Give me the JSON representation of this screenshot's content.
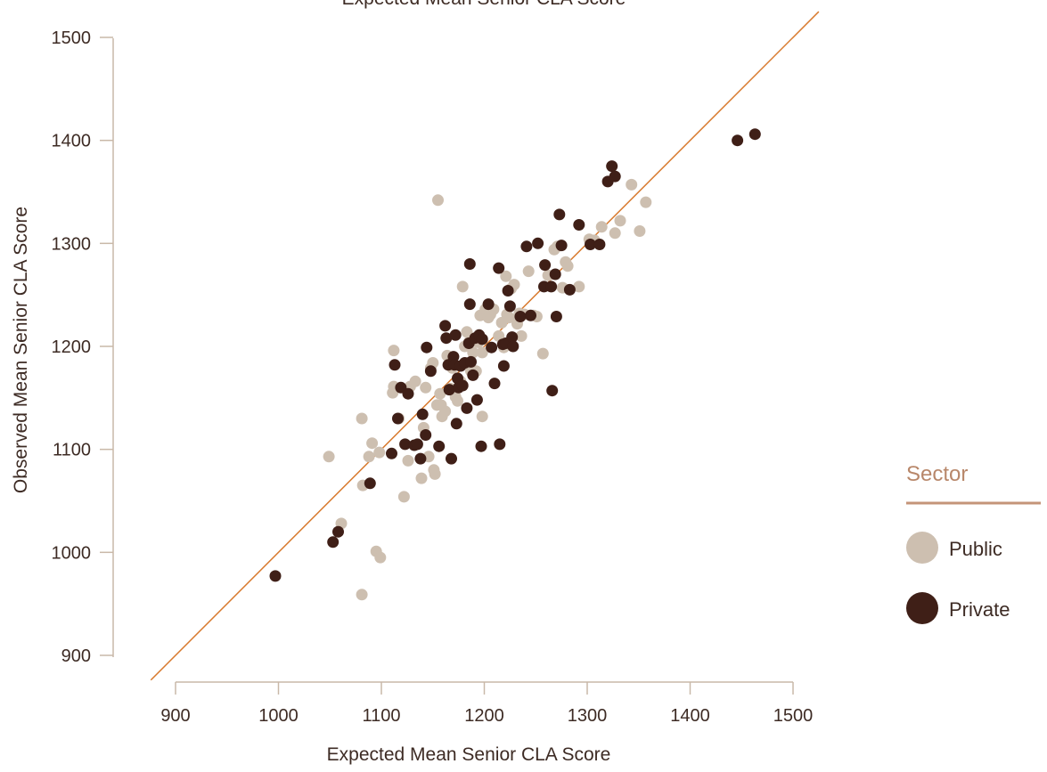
{
  "chart_data": {
    "type": "scatter",
    "title": "Expected Mean Senior CLA Score",
    "xlabel": "Expected Mean Senior CLA Score",
    "ylabel": "Observed Mean Senior CLA Score",
    "xlim": [
      900,
      1500
    ],
    "ylim": [
      900,
      1500
    ],
    "xticks": [
      "900",
      "1000",
      "1100",
      "1200",
      "1300",
      "1400",
      "1500"
    ],
    "yticks": [
      "900",
      "1000",
      "1100",
      "1200",
      "1300",
      "1400",
      "1500"
    ],
    "reference_line": "y = x",
    "legend": {
      "title": "Sector",
      "placement": "right"
    },
    "colors": {
      "public": "#cdbfb0",
      "private": "#3f1f17",
      "reference_line": "#d87a2e",
      "axis": "#c9b8a8",
      "legend_rule": "#c49478"
    },
    "series": [
      {
        "name": "Public",
        "key": "public",
        "points": [
          [
            1049,
            1093
          ],
          [
            1061,
            1028
          ],
          [
            1081,
            1130
          ],
          [
            1082,
            1065
          ],
          [
            1081,
            959
          ],
          [
            1088,
            1093
          ],
          [
            1091,
            1106
          ],
          [
            1095,
            1001
          ],
          [
            1098,
            1097
          ],
          [
            1099,
            995
          ],
          [
            1111,
            1155
          ],
          [
            1112,
            1161
          ],
          [
            1112,
            1196
          ],
          [
            1117,
            1130
          ],
          [
            1122,
            1054
          ],
          [
            1126,
            1089
          ],
          [
            1128,
            1161
          ],
          [
            1133,
            1166
          ],
          [
            1139,
            1072
          ],
          [
            1141,
            1121
          ],
          [
            1143,
            1160
          ],
          [
            1146,
            1093
          ],
          [
            1148,
            1179
          ],
          [
            1150,
            1184
          ],
          [
            1151,
            1080
          ],
          [
            1152,
            1076
          ],
          [
            1154,
            1143
          ],
          [
            1155,
            1342
          ],
          [
            1157,
            1154
          ],
          [
            1158,
            1143
          ],
          [
            1159,
            1132
          ],
          [
            1162,
            1137
          ],
          [
            1164,
            1191
          ],
          [
            1167,
            1159
          ],
          [
            1169,
            1179
          ],
          [
            1172,
            1151
          ],
          [
            1174,
            1147
          ],
          [
            1177,
            1166
          ],
          [
            1179,
            1258
          ],
          [
            1181,
            1200
          ],
          [
            1183,
            1214
          ],
          [
            1185,
            1204
          ],
          [
            1187,
            1176
          ],
          [
            1189,
            1194
          ],
          [
            1192,
            1176
          ],
          [
            1194,
            1204
          ],
          [
            1196,
            1230
          ],
          [
            1198,
            1194
          ],
          [
            1198,
            1132
          ],
          [
            1201,
            1236
          ],
          [
            1204,
            1228
          ],
          [
            1206,
            1231
          ],
          [
            1209,
            1236
          ],
          [
            1214,
            1210
          ],
          [
            1217,
            1223
          ],
          [
            1219,
            1199
          ],
          [
            1221,
            1268
          ],
          [
            1222,
            1231
          ],
          [
            1224,
            1228
          ],
          [
            1226,
            1256
          ],
          [
            1229,
            1260
          ],
          [
            1232,
            1222
          ],
          [
            1234,
            1232
          ],
          [
            1236,
            1210
          ],
          [
            1239,
            1231
          ],
          [
            1243,
            1273
          ],
          [
            1248,
            1230
          ],
          [
            1251,
            1229
          ],
          [
            1257,
            1193
          ],
          [
            1262,
            1269
          ],
          [
            1268,
            1294
          ],
          [
            1271,
            1297
          ],
          [
            1276,
            1257
          ],
          [
            1279,
            1282
          ],
          [
            1281,
            1278
          ],
          [
            1292,
            1258
          ],
          [
            1302,
            1304
          ],
          [
            1307,
            1303
          ],
          [
            1314,
            1316
          ],
          [
            1327,
            1310
          ],
          [
            1332,
            1322
          ],
          [
            1343,
            1357
          ],
          [
            1351,
            1312
          ],
          [
            1357,
            1340
          ]
        ]
      },
      {
        "name": "Private",
        "key": "private",
        "points": [
          [
            997,
            977
          ],
          [
            1053,
            1010
          ],
          [
            1058,
            1020
          ],
          [
            1089,
            1067
          ],
          [
            1110,
            1096
          ],
          [
            1113,
            1182
          ],
          [
            1116,
            1130
          ],
          [
            1119,
            1160
          ],
          [
            1123,
            1105
          ],
          [
            1126,
            1154
          ],
          [
            1132,
            1104
          ],
          [
            1135,
            1105
          ],
          [
            1138,
            1091
          ],
          [
            1140,
            1134
          ],
          [
            1143,
            1114
          ],
          [
            1144,
            1199
          ],
          [
            1148,
            1176
          ],
          [
            1156,
            1103
          ],
          [
            1162,
            1220
          ],
          [
            1163,
            1208
          ],
          [
            1165,
            1182
          ],
          [
            1166,
            1158
          ],
          [
            1168,
            1091
          ],
          [
            1170,
            1190
          ],
          [
            1171,
            1182
          ],
          [
            1172,
            1211
          ],
          [
            1173,
            1125
          ],
          [
            1174,
            1169
          ],
          [
            1175,
            1160
          ],
          [
            1177,
            1181
          ],
          [
            1179,
            1162
          ],
          [
            1181,
            1184
          ],
          [
            1183,
            1140
          ],
          [
            1185,
            1203
          ],
          [
            1186,
            1241
          ],
          [
            1186,
            1280
          ],
          [
            1187,
            1185
          ],
          [
            1189,
            1172
          ],
          [
            1191,
            1208
          ],
          [
            1193,
            1148
          ],
          [
            1195,
            1211
          ],
          [
            1197,
            1103
          ],
          [
            1198,
            1207
          ],
          [
            1204,
            1241
          ],
          [
            1207,
            1199
          ],
          [
            1210,
            1164
          ],
          [
            1214,
            1276
          ],
          [
            1215,
            1105
          ],
          [
            1218,
            1202
          ],
          [
            1219,
            1181
          ],
          [
            1221,
            1203
          ],
          [
            1223,
            1254
          ],
          [
            1225,
            1239
          ],
          [
            1227,
            1209
          ],
          [
            1228,
            1200
          ],
          [
            1235,
            1229
          ],
          [
            1241,
            1297
          ],
          [
            1245,
            1230
          ],
          [
            1252,
            1300
          ],
          [
            1258,
            1258
          ],
          [
            1259,
            1279
          ],
          [
            1265,
            1258
          ],
          [
            1266,
            1157
          ],
          [
            1269,
            1270
          ],
          [
            1270,
            1229
          ],
          [
            1273,
            1328
          ],
          [
            1275,
            1298
          ],
          [
            1283,
            1255
          ],
          [
            1292,
            1318
          ],
          [
            1303,
            1299
          ],
          [
            1312,
            1299
          ],
          [
            1320,
            1360
          ],
          [
            1324,
            1375
          ],
          [
            1327,
            1365
          ],
          [
            1446,
            1400
          ],
          [
            1463,
            1406
          ]
        ]
      }
    ]
  }
}
